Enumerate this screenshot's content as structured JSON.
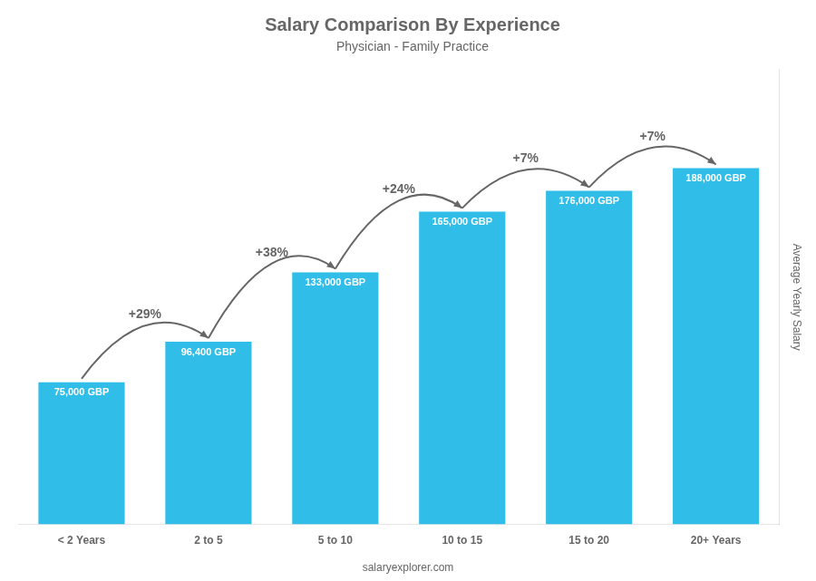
{
  "chart_data": {
    "type": "bar",
    "title": "Salary Comparison By Experience",
    "subtitle": "Physician - Family Practice",
    "ylabel": "Average Yearly Salary",
    "categories": [
      "< 2 Years",
      "2 to 5",
      "5 to 10",
      "10 to 15",
      "15 to 20",
      "20+ Years"
    ],
    "values": [
      75000,
      96400,
      133000,
      165000,
      176000,
      188000
    ],
    "value_labels": [
      "75,000 GBP",
      "96,400 GBP",
      "133,000 GBP",
      "165,000 GBP",
      "176,000 GBP",
      "188,000 GBP"
    ],
    "data_labels": true,
    "annotations": [
      "+29%",
      "+38%",
      "+24%",
      "+7%",
      "+7%"
    ],
    "watermark": "salaryexplorer.com",
    "color": "#30bde8",
    "ylim": [
      0,
      240000
    ],
    "tick_labels": "x",
    "grid": false
  }
}
